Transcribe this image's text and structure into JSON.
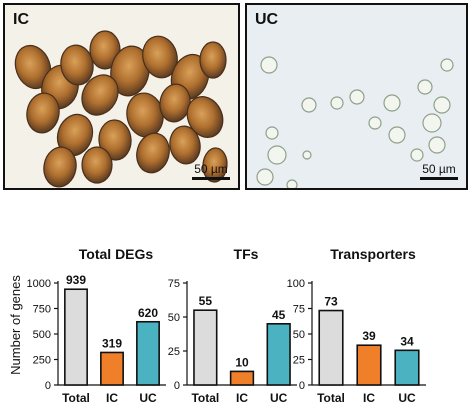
{
  "images": {
    "left": {
      "label": "IC",
      "scale_bar": "50 µm"
    },
    "right": {
      "label": "UC",
      "scale_bar": "50 µm"
    }
  },
  "y_axis_title": "Number of genes",
  "chart_data": [
    {
      "type": "bar",
      "title": "Total DEGs",
      "categories": [
        "Total",
        "IC",
        "UC"
      ],
      "values": [
        939,
        319,
        620
      ],
      "colors": [
        "#dcdcdc",
        "#f07f2a",
        "#4bb2c2"
      ],
      "ylim": [
        0,
        1000
      ],
      "yticks": [
        "0",
        "250",
        "500",
        "750",
        "1000"
      ]
    },
    {
      "type": "bar",
      "title": "TFs",
      "categories": [
        "Total",
        "IC",
        "UC"
      ],
      "values": [
        55,
        10,
        45
      ],
      "colors": [
        "#dcdcdc",
        "#f07f2a",
        "#4bb2c2"
      ],
      "ylim": [
        0,
        75
      ],
      "yticks": [
        "0",
        "25",
        "50",
        "75"
      ]
    },
    {
      "type": "bar",
      "title": "Transporters",
      "categories": [
        "Total",
        "IC",
        "UC"
      ],
      "values": [
        73,
        39,
        34
      ],
      "colors": [
        "#dcdcdc",
        "#f07f2a",
        "#4bb2c2"
      ],
      "ylim": [
        0,
        100
      ],
      "yticks": [
        "0",
        "25",
        "50",
        "75",
        "100"
      ]
    }
  ]
}
